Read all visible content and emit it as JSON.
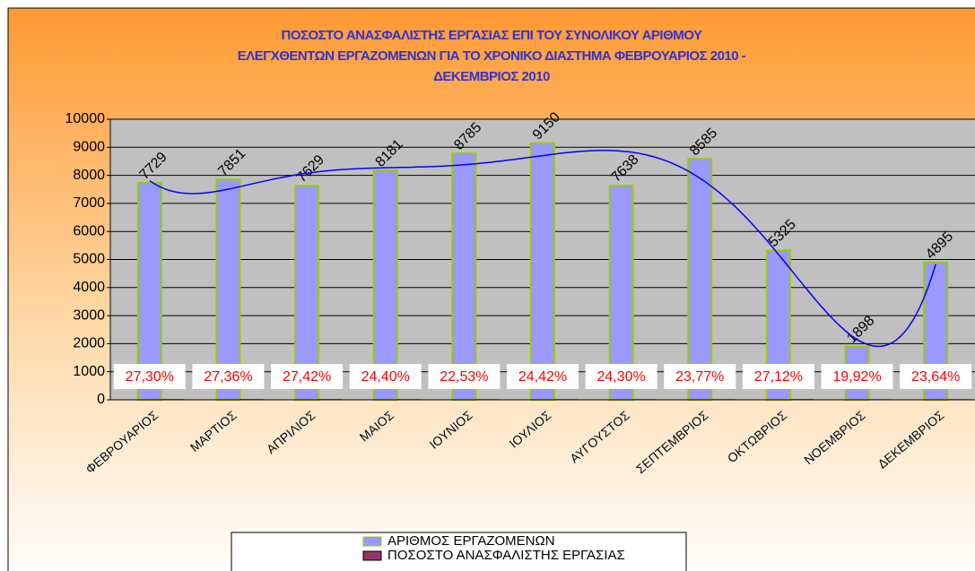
{
  "chart_data": {
    "type": "bar",
    "title": [
      "ΠΟΣΟΣΤΟ ΑΝΑΣΦΑΛΙΣΤΗΣ ΕΡΓΑΣΙΑΣ ΕΠΙ ΤΟΥ ΣΥΝΟΛΙΚΟΥ ΑΡΙΘΜΟΥ",
      "ΕΛΕΓΧΘΕΝΤΩΝ ΕΡΓΑΖΟΜΕΝΩΝ ΓΙΑ ΤΟ ΧΡΟΝΙΚΟ ΔΙΑΣΤΗΜΑ ΦΕΒΡΟΥΑΡΙΟΣ 2010 -",
      "ΔΕΚΕΜΒΡΙΟΣ 2010"
    ],
    "categories": [
      "ΦΕΒΡΟΥΑΡΙΟΣ",
      "ΜΑΡΤΙΟΣ",
      "ΑΠΡΙΛΙΟΣ",
      "ΜΑΙΟΣ",
      "ΙΟΥΝΙΟΣ",
      "ΙΟΥΛΙΟΣ",
      "ΑΥΓΟΥΣΤΟΣ",
      "ΣΕΠΤΕΜΒΡΙΟΣ",
      "ΟΚΤΩΒΡΙΟΣ",
      "ΝΟΕΜΒΡΙΟΣ",
      "ΔΕΚΕΜΒΡΙΟΣ"
    ],
    "series": [
      {
        "name": "ΑΡΙΘΜΟΣ ΕΡΓΑΖΟΜΕΝΩΝ",
        "color": "#9999ff",
        "values": [
          7729,
          7851,
          7629,
          8181,
          8785,
          9150,
          7638,
          8585,
          5325,
          1898,
          4895
        ]
      },
      {
        "name": "ΠΟΣΟΣΤΟ ΑΝΑΣΦΑΛΙΣΤΗΣ ΕΡΓΑΣΙΑΣ",
        "color": "#993366",
        "values": [
          27.3,
          27.36,
          27.42,
          24.4,
          22.53,
          24.42,
          24.3,
          23.77,
          27.12,
          19.92,
          23.64
        ],
        "value_labels": [
          "27,30%",
          "27,36%",
          "27,42%",
          "24,40%",
          "22,53%",
          "24,42%",
          "24,30%",
          "23,77%",
          "27,12%",
          "19,92%",
          "23,64%"
        ]
      }
    ],
    "ylim": [
      0,
      10000
    ],
    "yticks": [
      0,
      1000,
      2000,
      3000,
      4000,
      5000,
      6000,
      7000,
      8000,
      9000,
      10000
    ],
    "grid": true,
    "trendline_color": "#0000ff"
  }
}
